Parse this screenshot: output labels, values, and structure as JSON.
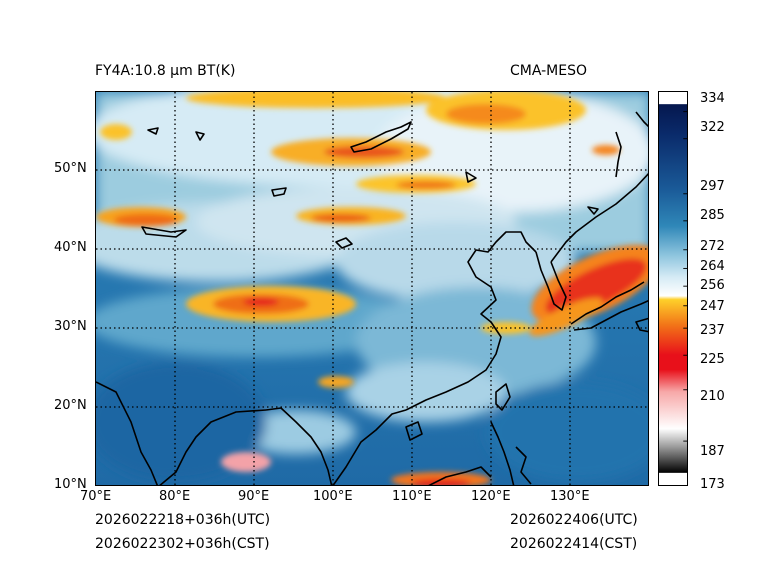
{
  "title_left": "FY4A:10.8 µm BT(K)",
  "title_right": "CMA-MESO",
  "footer": {
    "init_utc": "2026022218+036h(UTC)",
    "init_cst": "2026022302+036h(CST)",
    "valid_utc": "2026022406(UTC)",
    "valid_cst": "2026022414(CST)"
  },
  "map": {
    "lon_labels": [
      "70°E",
      "80°E",
      "90°E",
      "100°E",
      "110°E",
      "120°E",
      "130°E"
    ],
    "lat_labels": [
      "50°N",
      "40°N",
      "30°N",
      "20°N",
      "10°N"
    ]
  },
  "colorbar": {
    "tick_labels": [
      "334",
      "322",
      "297",
      "285",
      "272",
      "264",
      "256",
      "247",
      "237",
      "225",
      "210",
      "187",
      "173"
    ],
    "colors": {
      "cold": "#000000",
      "gray": "#9a9a9a",
      "white": "#ffffff",
      "pink": "#f7a8a8",
      "red": "#e8101a",
      "orange": "#f27318",
      "yellow": "#fed02a",
      "sky": "#d6ebf5",
      "light_blue": "#8ec5de",
      "mid_blue": "#2f87b8",
      "deep_blue": "#1a5a98",
      "navy": "#05174e"
    }
  }
}
